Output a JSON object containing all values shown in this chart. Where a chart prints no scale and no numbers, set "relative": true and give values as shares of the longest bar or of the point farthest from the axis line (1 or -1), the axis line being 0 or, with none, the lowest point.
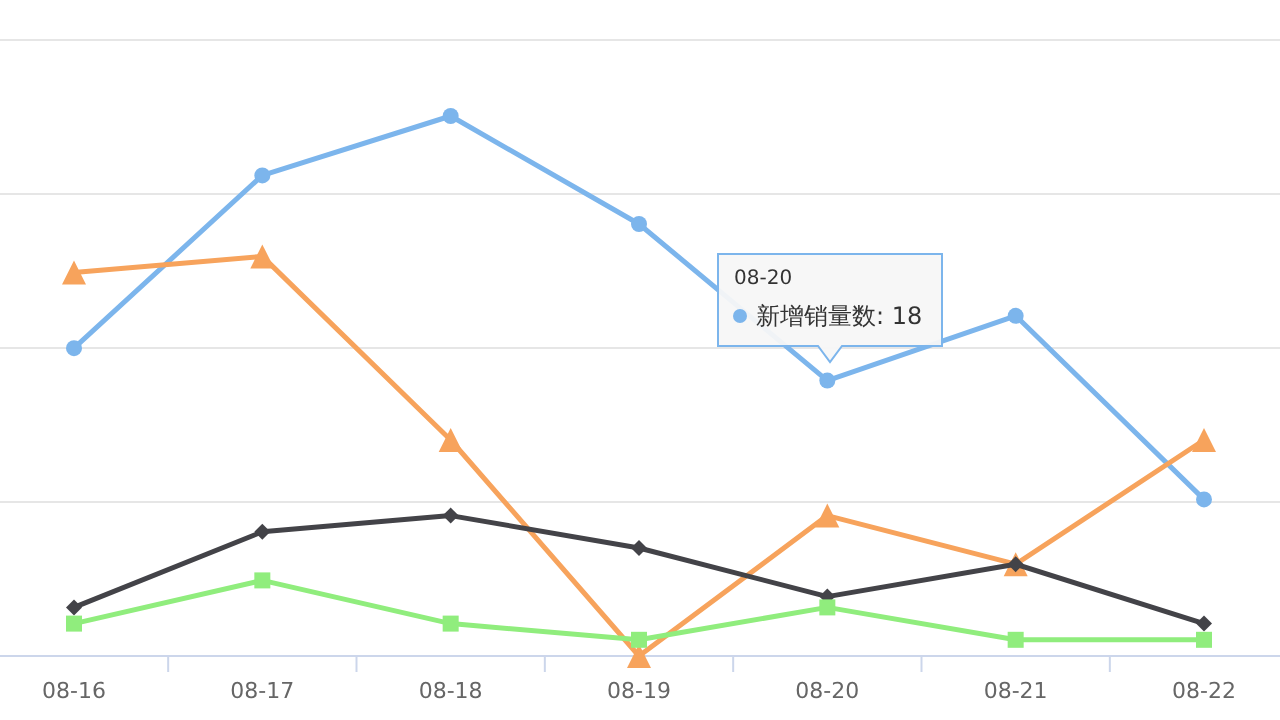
{
  "chart_data": {
    "type": "line",
    "relative": true,
    "categories": [
      "08-16",
      "08-17",
      "08-18",
      "08-19",
      "08-20",
      "08-21",
      "08-22"
    ],
    "series": [
      {
        "color": "#7cb5ec",
        "marker": "circle",
        "values": [
          0.57,
          0.89,
          1,
          0.8,
          0.51,
          0.63,
          0.29
        ]
      },
      {
        "color": "#f7a35c",
        "marker": "triangle",
        "values": [
          0.71,
          0.74,
          0.4,
          0,
          0.26,
          0.17,
          0.4
        ]
      },
      {
        "color": "#434348",
        "marker": "diamond",
        "values": [
          0.09,
          0.23,
          0.26,
          0.2,
          0.11,
          0.17,
          0.06
        ]
      },
      {
        "color": "#90ed7d",
        "marker": "square",
        "values": [
          0.06,
          0.14,
          0.06,
          0.03,
          0.09,
          0.03,
          0.03
        ]
      }
    ],
    "grid": "y",
    "line_style": "solid",
    "annotations": [
      "08-20",
      "新增销量数: 18"
    ]
  }
}
